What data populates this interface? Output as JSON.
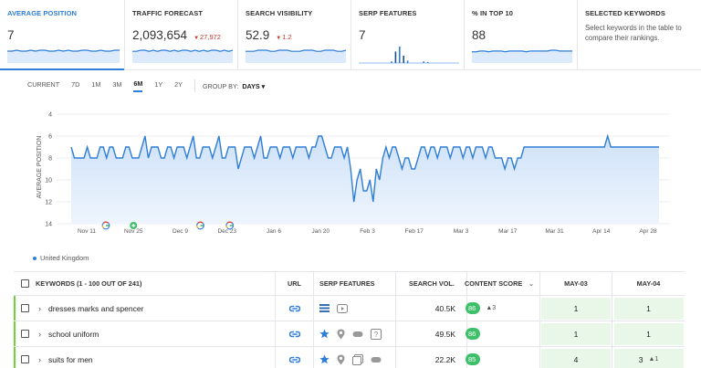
{
  "metrics": [
    {
      "title": "AVERAGE POSITION",
      "value": "7",
      "delta": "",
      "note": "",
      "spark": [
        5,
        5,
        6,
        5,
        5,
        6,
        5,
        6,
        6,
        5,
        5,
        6,
        5,
        6,
        5,
        5,
        6,
        6,
        5,
        5,
        6,
        5,
        5,
        6,
        6
      ]
    },
    {
      "title": "TRAFFIC FORECAST",
      "value": "2,093,654",
      "delta": "27,972",
      "note": "",
      "spark": [
        4,
        4,
        5,
        5,
        4,
        5,
        4,
        5,
        5,
        4,
        5,
        4,
        5,
        5,
        4,
        5,
        4,
        5,
        4,
        5,
        5,
        4,
        5,
        4,
        5
      ]
    },
    {
      "title": "SEARCH VISIBILITY",
      "value": "52.9",
      "delta": "1.2",
      "note": "",
      "spark": [
        4,
        4,
        4,
        5,
        5,
        5,
        4,
        4,
        5,
        5,
        5,
        4,
        4,
        4,
        5,
        5,
        5,
        4,
        4,
        5,
        5,
        5,
        4,
        4,
        5
      ]
    },
    {
      "title": "SERP FEATURES",
      "value": "7",
      "delta": "",
      "note": "",
      "spark": [
        0,
        0,
        0,
        0,
        0,
        0,
        0,
        0,
        2,
        14,
        20,
        9,
        3,
        0,
        0,
        0,
        2,
        1,
        0,
        0,
        0,
        0,
        0,
        0,
        0
      ]
    },
    {
      "title": "% IN TOP 10",
      "value": "88",
      "delta": "",
      "note": "",
      "spark": [
        5,
        5,
        6,
        6,
        5,
        6,
        6,
        6,
        5,
        6,
        6,
        6,
        6,
        5,
        6,
        6,
        6,
        6,
        6,
        7,
        7,
        6,
        6,
        6,
        6
      ]
    },
    {
      "title": "SELECTED KEYWORDS",
      "value": "",
      "delta": "",
      "note": "Select keywords in the table to compare their rankings.",
      "spark": []
    }
  ],
  "timeline": {
    "ranges": [
      "CURRENT",
      "7D",
      "1M",
      "3M",
      "6M",
      "1Y",
      "2Y"
    ],
    "active": "6M",
    "group_label": "GROUP BY:",
    "group_value": "DAYS"
  },
  "chart_data": {
    "type": "area",
    "title": "",
    "ylabel": "AVERAGE POSITION",
    "ylim": [
      4,
      14
    ],
    "y_reversed": true,
    "yticks": [
      4,
      6,
      8,
      10,
      12,
      14
    ],
    "xticks": [
      "Nov 11",
      "Nov 25",
      "Dec 9",
      "Dec 23",
      "Jan 6",
      "Jan 20",
      "Feb 3",
      "Feb 17",
      "Mar 3",
      "Mar 17",
      "Mar 31",
      "Apr 14",
      "Apr 28"
    ],
    "series": [
      {
        "name": "United Kingdom",
        "values": [
          7,
          8,
          8,
          8,
          8,
          7,
          8,
          8,
          8,
          7,
          7,
          8,
          7,
          7,
          8,
          8,
          8,
          7,
          7,
          8,
          8,
          8,
          7,
          6,
          8,
          7,
          7,
          7,
          8,
          8,
          7,
          7,
          8,
          7,
          7,
          7,
          8,
          7,
          6,
          8,
          8,
          7,
          7,
          7,
          8,
          7,
          6,
          8,
          8,
          7,
          7,
          7,
          9,
          8,
          7,
          7,
          7,
          8,
          7,
          6,
          8,
          8,
          7,
          7,
          7,
          8,
          7,
          7,
          7,
          8,
          7,
          7,
          7,
          7,
          8,
          7,
          7,
          6,
          6,
          7,
          8,
          8,
          7,
          7,
          7,
          8,
          7,
          9,
          12,
          10,
          9,
          11,
          11,
          10,
          12,
          9,
          10,
          8,
          7,
          8,
          7,
          7,
          8,
          9,
          8,
          8,
          9,
          9,
          8,
          7,
          7,
          8,
          7,
          7,
          8,
          7,
          7,
          7,
          8,
          7,
          7,
          7,
          8,
          7,
          7,
          8,
          7,
          7,
          7,
          8,
          7,
          7,
          8,
          8,
          8,
          9,
          8,
          8,
          9,
          8,
          8,
          7,
          7,
          7,
          7,
          7,
          7,
          7,
          7,
          7,
          7,
          7,
          7,
          7,
          7,
          7,
          7,
          7,
          7,
          7,
          7,
          7,
          7,
          7,
          7,
          7,
          7,
          6,
          7,
          7,
          7,
          7,
          7,
          7,
          7,
          7,
          7,
          7,
          7,
          7,
          7,
          7,
          7,
          7
        ]
      }
    ],
    "markers": [
      {
        "x": "Nov 11",
        "type": "G"
      },
      {
        "x": "Nov 25",
        "type": "+"
      },
      {
        "x": "Dec 9",
        "type": "G"
      },
      {
        "x": "Dec 23",
        "type": "G"
      }
    ]
  },
  "legend": {
    "label": "United Kingdom",
    "color": "#2f7ed8"
  },
  "table": {
    "headers": {
      "keywords": "KEYWORDS (1 - 100 OUT OF 241)",
      "url": "URL",
      "serp": "SERP FEATURES",
      "volume": "SEARCH VOL.",
      "score": "CONTENT SCORE",
      "date1": "MAY-03",
      "date2": "MAY-04"
    },
    "rows": [
      {
        "keyword": "dresses marks and spencer",
        "volume": "40.5K",
        "score": "86",
        "score_delta": "3",
        "d1": "1",
        "d2": "1",
        "d2_delta": "",
        "serp": [
          "list-icon",
          "video-icon"
        ]
      },
      {
        "keyword": "school uniform",
        "volume": "49.5K",
        "score": "86",
        "score_delta": "",
        "d1": "1",
        "d2": "1",
        "d2_delta": "",
        "serp": [
          "star-icon",
          "pin-icon",
          "link-icon",
          "question-icon"
        ]
      },
      {
        "keyword": "suits for men",
        "volume": "22.2K",
        "score": "85",
        "score_delta": "",
        "d1": "4",
        "d2": "3",
        "d2_delta": "1",
        "serp": [
          "star-icon",
          "pin-icon",
          "image-icon",
          "link-icon"
        ]
      }
    ]
  }
}
